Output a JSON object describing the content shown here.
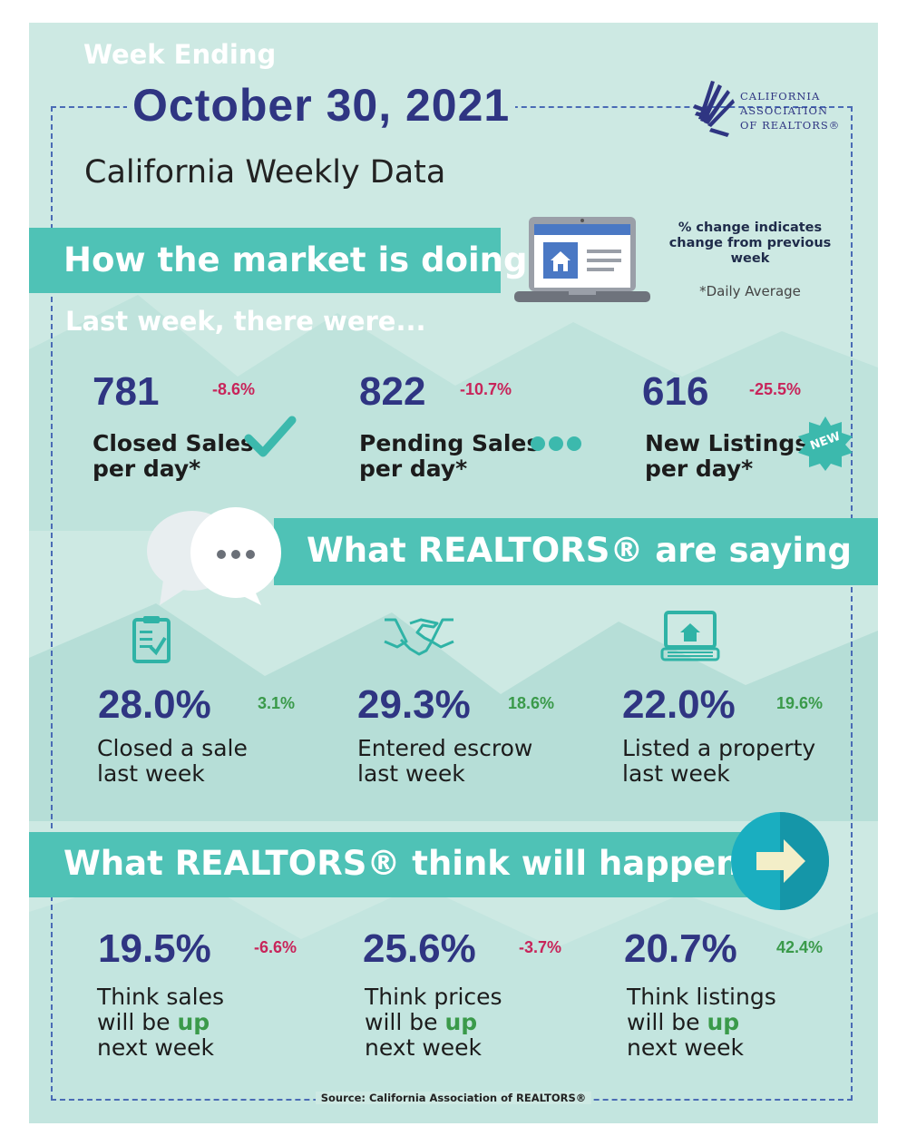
{
  "header": {
    "week_ending": "Week Ending",
    "date": "October 30, 2021",
    "subtitle": "California Weekly Data",
    "logo_lines": [
      "CALIFORNIA",
      "ASSOCIATION",
      "OF REALTORS®"
    ]
  },
  "market": {
    "banner": "How the market is doing",
    "note": "% change indicates change from previous week",
    "daily_note": "*Daily Average",
    "intro": "Last week, there were...",
    "stats": [
      {
        "value": "781",
        "change": "-8.6%",
        "label_line1": "Closed Sales",
        "label_line2": "per day*",
        "icon": "checkmark-icon"
      },
      {
        "value": "822",
        "change": "-10.7%",
        "label_line1": "Pending Sales",
        "label_line2": "per day*",
        "icon": "ellipsis-dots-icon"
      },
      {
        "value": "616",
        "change": "-25.5%",
        "label_line1": "New Listings",
        "label_line2": "per day*",
        "icon": "new-badge-icon",
        "badge_text": "NEW"
      }
    ]
  },
  "saying": {
    "banner": "What REALTORS® are saying",
    "stats": [
      {
        "value": "28.0%",
        "change": "3.1%",
        "label_line1": "Closed a sale",
        "label_line2": "last week",
        "icon": "clipboard-icon"
      },
      {
        "value": "29.3%",
        "change": "18.6%",
        "label_line1": "Entered escrow",
        "label_line2": "last week",
        "icon": "handshake-icon"
      },
      {
        "value": "22.0%",
        "change": "19.6%",
        "label_line1": "Listed a property",
        "label_line2": "last week",
        "icon": "laptop-house-icon"
      }
    ]
  },
  "future": {
    "banner": "What REALTORS® think will happen",
    "stats": [
      {
        "value": "19.5%",
        "change": "-6.6%",
        "label_line1": "Think sales",
        "label_line2_pre": "will be ",
        "label_line2_em": "up",
        "label_line3": "next week"
      },
      {
        "value": "25.6%",
        "change": "-3.7%",
        "label_line1": "Think prices",
        "label_line2_pre": "will be ",
        "label_line2_em": "up",
        "label_line3": "next week"
      },
      {
        "value": "20.7%",
        "change": "42.4%",
        "label_line1": "Think listings",
        "label_line2_pre": "will be ",
        "label_line2_em": "up",
        "label_line3": "next week"
      }
    ]
  },
  "source": "Source: California Association of REALTORS®",
  "colors": {
    "background": "#cde9e3",
    "banner": "#4fc2b6",
    "navy": "#2f3582",
    "negative": "#c8245a",
    "positive": "#3a9a4a"
  }
}
